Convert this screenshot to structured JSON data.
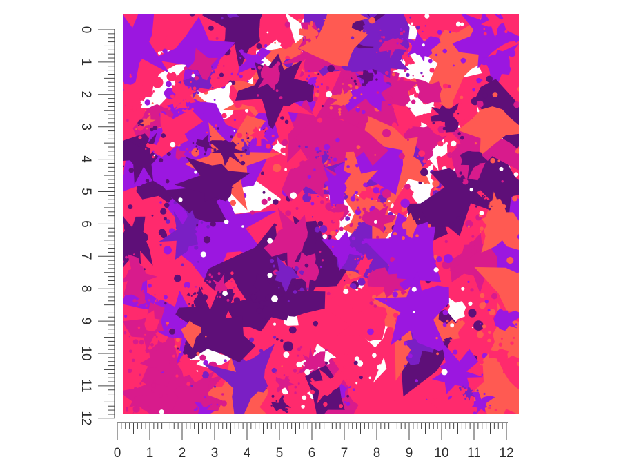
{
  "vertical_ruler": {
    "labels": [
      "0",
      "1",
      "2",
      "3",
      "4",
      "5",
      "6",
      "7",
      "8",
      "9",
      "10",
      "11",
      "12"
    ]
  },
  "horizontal_ruler": {
    "labels": [
      "0",
      "1",
      "2",
      "3",
      "4",
      "5",
      "6",
      "7",
      "8",
      "9",
      "10",
      "11",
      "12"
    ]
  },
  "swatch": {
    "pattern": "paint-splatter",
    "colors": {
      "hot_pink": "#ff2a6d",
      "coral": "#ff5a52",
      "magenta": "#d81b8c",
      "violet": "#9b17e0",
      "purple": "#7a1fc4",
      "deep_purple": "#5e0f78",
      "white": "#ffffff"
    }
  }
}
